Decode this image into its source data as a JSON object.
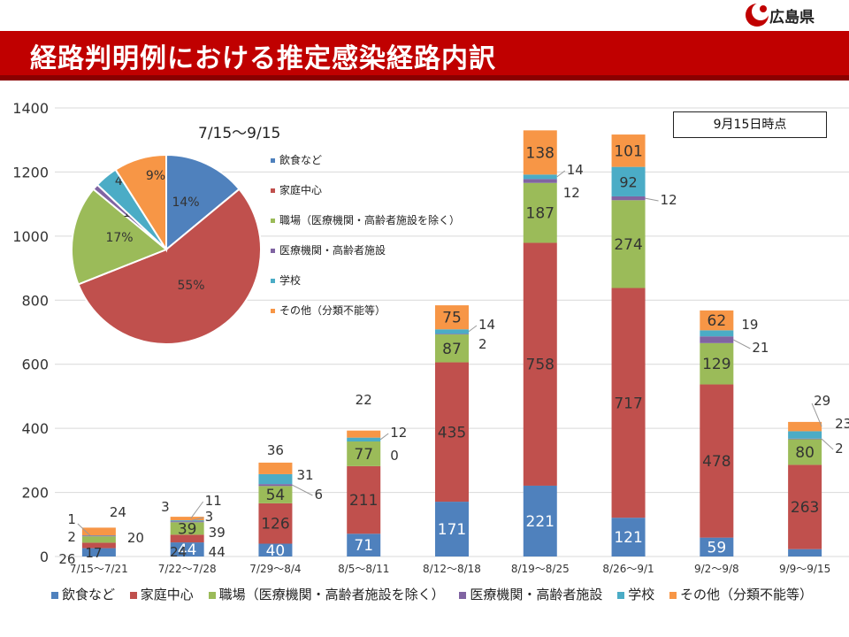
{
  "header": {
    "org_name": "広島県",
    "title": "経路判明例における推定感染経路内訳"
  },
  "colors": {
    "title_bg": "#c00000",
    "logo": "#c00000"
  },
  "date_note": "9月15日時点",
  "pie": {
    "period": "7/15～9/15",
    "slices": [
      {
        "name": "飲食など",
        "percent": 14,
        "label": "14%",
        "color": "#4f81bd"
      },
      {
        "name": "家庭中心",
        "percent": 55,
        "label": "55%",
        "color": "#c0504d"
      },
      {
        "name": "職場（医療機関・高齢者施設を除く）",
        "percent": 17,
        "label": "17%",
        "color": "#9bbb59"
      },
      {
        "name": "医療機関・高齢者施設",
        "percent": 1,
        "label": "1%",
        "color": "#8064a2"
      },
      {
        "name": "学校",
        "percent": 4,
        "label": "4%",
        "color": "#4bacc6"
      },
      {
        "name": "その他（分類不能等）",
        "percent": 9,
        "label": "9%",
        "color": "#f79646"
      }
    ]
  },
  "chart_data": {
    "type": "bar",
    "stacked": true,
    "categories": [
      "7/15～7/21",
      "7/22～7/28",
      "7/29～8/4",
      "8/5～8/11",
      "8/12～8/18",
      "8/19～8/25",
      "8/26～9/1",
      "9/2～9/8",
      "9/9～9/15"
    ],
    "series": [
      {
        "name": "飲食など",
        "color": "#4f81bd",
        "values": [
          26,
          44,
          40,
          71,
          171,
          221,
          121,
          59,
          23
        ]
      },
      {
        "name": "家庭中心",
        "color": "#c0504d",
        "values": [
          17,
          24,
          126,
          211,
          435,
          758,
          717,
          478,
          263
        ]
      },
      {
        "name": "職場（医療機関・高齢者施設を除く）",
        "color": "#9bbb59",
        "values": [
          20,
          39,
          54,
          77,
          87,
          187,
          274,
          129,
          80
        ]
      },
      {
        "name": "医療機関・高齢者施設",
        "color": "#8064a2",
        "values": [
          2,
          3,
          6,
          0,
          2,
          12,
          12,
          21,
          2
        ]
      },
      {
        "name": "学校",
        "color": "#4bacc6",
        "values": [
          1,
          3,
          31,
          12,
          14,
          14,
          92,
          19,
          23
        ]
      },
      {
        "name": "その他（分類不能等）",
        "color": "#f79646",
        "values": [
          24,
          11,
          36,
          22,
          75,
          138,
          101,
          62,
          29
        ]
      }
    ],
    "ylim": [
      0,
      1400
    ],
    "yticks": [
      0,
      200,
      400,
      600,
      800,
      1000,
      1200,
      1400
    ],
    "grid": true,
    "legend": "bottom"
  }
}
